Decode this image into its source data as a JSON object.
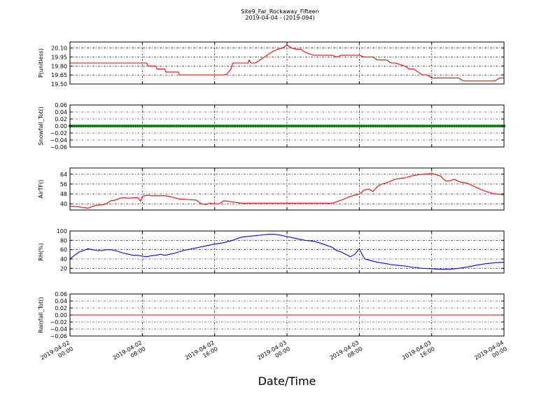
{
  "title": {
    "line1": "Site9_Far_Rockaway_Fifteen",
    "line2": "2019-04-04 - (2019-094)"
  },
  "chart_data": [
    {
      "type": "line",
      "ylabel": "P(unitless)",
      "ylim": [
        19.5,
        20.2
      ],
      "yticks": [
        "19.50",
        "19.65",
        "19.80",
        "19.95",
        "20.10"
      ],
      "ytick_values": [
        19.5,
        19.65,
        19.8,
        19.95,
        20.1
      ],
      "grid": true,
      "series": [
        {
          "color": "#ff0000",
          "marker": "none",
          "x": [
            0,
            8.5,
            8.6,
            9.5,
            9.6,
            10.5,
            10.6,
            12,
            12.1,
            17,
            17.3,
            17.8,
            18,
            19.7,
            19.8,
            20,
            20.5,
            21,
            21.5,
            22,
            22.5,
            23,
            23.5,
            24,
            24.5,
            25,
            25.5,
            26,
            26.5,
            27,
            27.5,
            28,
            29,
            29.5,
            30,
            32,
            32.5,
            33,
            33.5,
            34,
            35,
            35.5,
            36,
            37,
            37.5,
            38,
            38.5,
            39,
            39.5,
            40,
            41,
            42,
            43,
            43.5,
            45,
            46,
            47,
            47.5,
            48
          ],
          "y": [
            19.85,
            19.85,
            19.8,
            19.8,
            19.75,
            19.75,
            19.7,
            19.7,
            19.65,
            19.65,
            19.66,
            19.75,
            19.85,
            19.85,
            19.9,
            19.85,
            19.85,
            19.9,
            19.95,
            20.0,
            20.05,
            20.08,
            20.1,
            20.15,
            20.1,
            20.08,
            20.08,
            20.03,
            20.0,
            19.98,
            19.98,
            19.98,
            19.98,
            19.95,
            19.98,
            19.98,
            19.95,
            19.95,
            19.95,
            19.9,
            19.9,
            19.85,
            19.85,
            19.8,
            19.75,
            19.75,
            19.7,
            19.65,
            19.65,
            19.6,
            19.6,
            19.6,
            19.6,
            19.55,
            19.55,
            19.55,
            19.55,
            19.6,
            19.6
          ]
        }
      ]
    },
    {
      "type": "scatter",
      "ylabel": "Snowfall_Tot()",
      "ylim": [
        -0.06,
        0.06
      ],
      "yticks": [
        "−0.06",
        "−0.04",
        "−0.02",
        "0.00",
        "0.02",
        "0.04",
        "0.06"
      ],
      "ytick_values": [
        -0.06,
        -0.04,
        -0.02,
        0.0,
        0.02,
        0.04,
        0.06
      ],
      "grid": true,
      "series": [
        {
          "color": "#008000",
          "marker": "dot",
          "constant": 0.0,
          "x_start": 0,
          "x_end": 48,
          "x_step": 0.25
        }
      ]
    },
    {
      "type": "line",
      "ylabel": "AirTF()",
      "ylim": [
        35,
        69
      ],
      "yticks": [
        "40",
        "48",
        "56",
        "64"
      ],
      "ytick_values": [
        40,
        48,
        56,
        64
      ],
      "grid": true,
      "series": [
        {
          "color": "#ff0000",
          "marker": "none",
          "x": [
            0,
            1,
            1.5,
            2,
            2.5,
            3,
            3.5,
            4,
            4.5,
            5,
            5.5,
            6,
            6.5,
            7,
            7.5,
            7.8,
            8,
            8.5,
            9,
            9.5,
            10,
            10.5,
            11,
            11.5,
            12,
            13,
            14,
            14.5,
            15,
            15.5,
            16,
            16.5,
            17,
            17.5,
            18,
            18.5,
            19,
            20,
            21,
            22,
            23,
            24,
            25,
            26,
            27,
            28,
            28.5,
            29,
            30,
            31,
            31.5,
            32,
            32.2,
            32.5,
            33,
            33.5,
            34,
            34.5,
            35,
            36,
            37,
            38,
            38.5,
            39,
            40,
            40.5,
            41,
            41.3,
            41.6,
            42,
            42.5,
            43,
            44,
            45,
            46,
            47,
            48
          ],
          "y": [
            38,
            37.5,
            37,
            36.5,
            38,
            39,
            39,
            40,
            42.5,
            43,
            44.5,
            45,
            44.5,
            45,
            45,
            42,
            46,
            47,
            46.5,
            46.5,
            46.5,
            46.5,
            46,
            45,
            44,
            43.5,
            43,
            40,
            39.5,
            40.5,
            40,
            40,
            42.5,
            42,
            41.5,
            41,
            40.5,
            40.5,
            40.5,
            40.5,
            40.5,
            40.5,
            40.5,
            40.5,
            40.5,
            40.5,
            40.5,
            40.5,
            43,
            46,
            47,
            48,
            49,
            51,
            52,
            50,
            54,
            56,
            57,
            60,
            61,
            63,
            63.5,
            64,
            64.5,
            63.5,
            62.5,
            60,
            58.5,
            58.5,
            60,
            58,
            56.5,
            53,
            50,
            48,
            47.5
          ]
        }
      ]
    },
    {
      "type": "line",
      "ylabel": "RH(%)",
      "ylim": [
        10,
        100
      ],
      "yticks": [
        "20",
        "40",
        "60",
        "80",
        "100"
      ],
      "ytick_values": [
        20,
        40,
        60,
        80,
        100
      ],
      "grid": true,
      "series": [
        {
          "color": "#0000ff",
          "marker": "none",
          "x": [
            0,
            0.5,
            1,
            1.5,
            2,
            2.5,
            3,
            3.5,
            4,
            4.5,
            5,
            5.5,
            6,
            6.5,
            7,
            7.5,
            8,
            8.5,
            9,
            9.5,
            10,
            10.5,
            11,
            11.5,
            12,
            12.5,
            13,
            13.5,
            14,
            15,
            16,
            17,
            18,
            18.5,
            19,
            20,
            21,
            22,
            22.5,
            23,
            24,
            25,
            26,
            27,
            28,
            29,
            29.5,
            30,
            31,
            31.5,
            32,
            32.3,
            32.6,
            33,
            34,
            35,
            35.5,
            36,
            37,
            38,
            39,
            40,
            41,
            42,
            43,
            44,
            45,
            46,
            47,
            48
          ],
          "y": [
            40,
            48,
            55,
            58,
            62,
            60,
            58,
            58,
            60,
            60,
            58,
            55,
            52,
            50,
            48,
            48,
            46,
            45,
            47,
            48,
            50,
            48,
            50,
            52,
            55,
            58,
            60,
            62,
            64,
            68,
            72,
            75,
            80,
            84,
            87,
            89,
            91,
            93,
            93,
            92,
            88,
            84,
            80,
            78,
            72,
            65,
            58,
            55,
            45,
            50,
            62,
            50,
            40,
            38,
            33,
            30,
            28,
            27,
            25,
            22,
            20,
            19,
            18,
            18,
            20,
            23,
            27,
            30,
            32,
            33
          ]
        }
      ]
    },
    {
      "type": "line",
      "ylabel": "Rainfall_Tot()",
      "ylim": [
        -0.06,
        0.06
      ],
      "yticks": [
        "−0.06",
        "−0.04",
        "−0.02",
        "0.00",
        "0.02",
        "0.04",
        "0.06"
      ],
      "ytick_values": [
        -0.06,
        -0.04,
        -0.02,
        0.0,
        0.02,
        0.04,
        0.06
      ],
      "grid": true,
      "series": [
        {
          "color": "#ff0000",
          "marker": "none",
          "x": [
            0,
            48
          ],
          "y": [
            0.0,
            0.0
          ]
        }
      ]
    }
  ],
  "x_axis": {
    "xlabel": "Date/Time",
    "xlim": [
      0,
      48
    ],
    "tick_values": [
      0,
      8,
      16,
      24,
      32,
      40,
      48
    ],
    "tick_labels": [
      [
        "2019-04-02",
        "00:00"
      ],
      [
        "2019-04-02",
        "08:00"
      ],
      [
        "2019-04-02",
        "16:00"
      ],
      [
        "2019-04-03",
        "00:00"
      ],
      [
        "2019-04-03",
        "08:00"
      ],
      [
        "2019-04-03",
        "16:00"
      ],
      [
        "2019-04-04",
        "00:00"
      ]
    ]
  }
}
